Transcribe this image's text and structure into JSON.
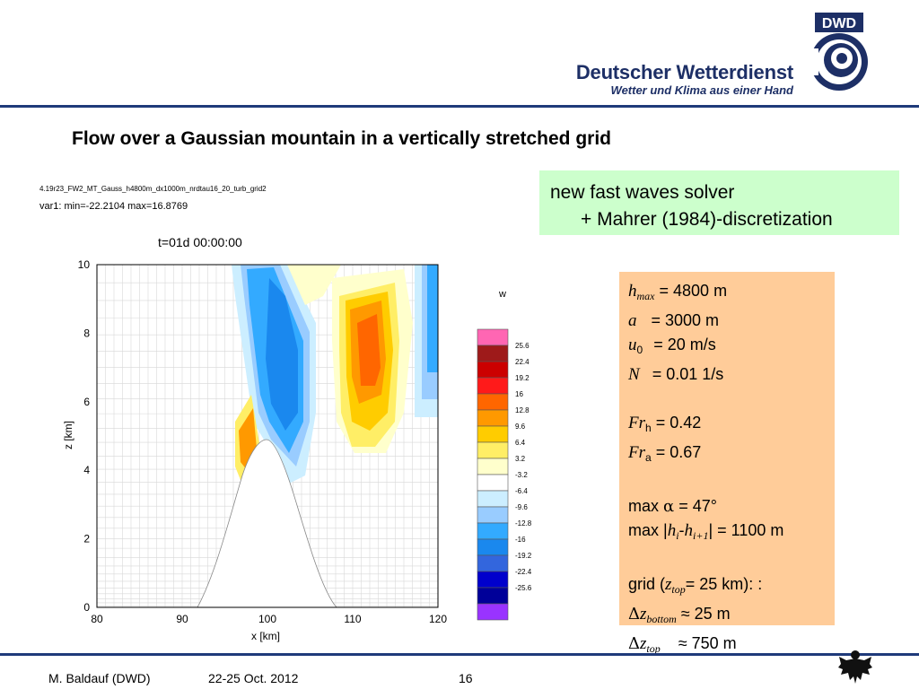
{
  "header": {
    "brand_name": "Deutscher Wetterdienst",
    "brand_slogan": "Wetter und Klima aus einer Hand",
    "logo_text": "DWD",
    "colors": {
      "brand_blue": "#1d2f66",
      "rule_blue": "#1f3a7a"
    }
  },
  "slide": {
    "title": "Flow over a Gaussian mountain in a vertically stretched grid",
    "green_box": {
      "line1": "new fast waves solver",
      "line2": "+ Mahrer (1984)-discretization",
      "color": "#ccffcc"
    },
    "params": {
      "color": "#ffcc99",
      "hmax": {
        "sym": "h",
        "sub": "max",
        "value": "= 4800 m"
      },
      "a": {
        "sym": "a",
        "value": "= 3000 m"
      },
      "u0": {
        "sym": "u",
        "sub": "0",
        "value": "= 20 m/s"
      },
      "N": {
        "sym": "N",
        "value": "= 0.01 1/s"
      },
      "Frh": {
        "sym": "Fr",
        "sub": "h",
        "value": "= 0.42"
      },
      "Fra": {
        "sym": "Fr",
        "sub": "a",
        "value": "= 0.67"
      },
      "max_alpha": {
        "prefix": "max",
        "sym": "α",
        "value": "= 47°"
      },
      "max_dh": {
        "prefix": "max |",
        "sym1": "h",
        "sub1": "i",
        "dash": "-",
        "sym2": "h",
        "sub2": "i+1",
        "value": "| = 1100 m"
      },
      "grid": {
        "prefix": "grid (",
        "sym": "z",
        "sub": "top",
        "value": "= 25 km): :"
      },
      "dz_bottom": {
        "delta": "Δ",
        "sym": "z",
        "sub": "bottom",
        "value": "≈  25 m"
      },
      "dz_top": {
        "delta": "Δ",
        "sym": "z",
        "sub": "top",
        "value": "≈ 750 m"
      }
    }
  },
  "plot": {
    "run_title": "4.19r23_FW2_MT_Gauss_h4800m_dx1000m_nrdtau16_20_turb_grid2",
    "var_info": "var1:   min=-22.2104   max=16.8769",
    "time_label": "t=01d 00:00:00",
    "xlabel": "x [km]",
    "ylabel": "z [km]",
    "xticks": [
      "80",
      "90",
      "100",
      "110",
      "120"
    ],
    "yticks": [
      "0",
      "2",
      "4",
      "6",
      "8",
      "10"
    ],
    "colorbar_title": "w",
    "colorbar_labels": [
      "25.6",
      "22.4",
      "19.2",
      "16",
      "12.8",
      "9.6",
      "6.4",
      "3.2",
      "-3.2",
      "-6.4",
      "-9.6",
      "-12.8",
      "-16",
      "-19.2",
      "-22.4",
      "-25.6"
    ],
    "colorbar_colors": [
      "#ff66b3",
      "#9e1a1a",
      "#cc0000",
      "#ff1a1a",
      "#ff6600",
      "#ff9900",
      "#ffcc00",
      "#ffee66",
      "#ffffcc",
      "#ffffff",
      "#cceeff",
      "#99ccff",
      "#33aaff",
      "#1a88ee",
      "#3366dd",
      "#0000cc",
      "#000099",
      "#9933ff"
    ]
  },
  "footer": {
    "author": "M. Baldauf (DWD)",
    "date": "22-25 Oct. 2012",
    "page": "16"
  }
}
